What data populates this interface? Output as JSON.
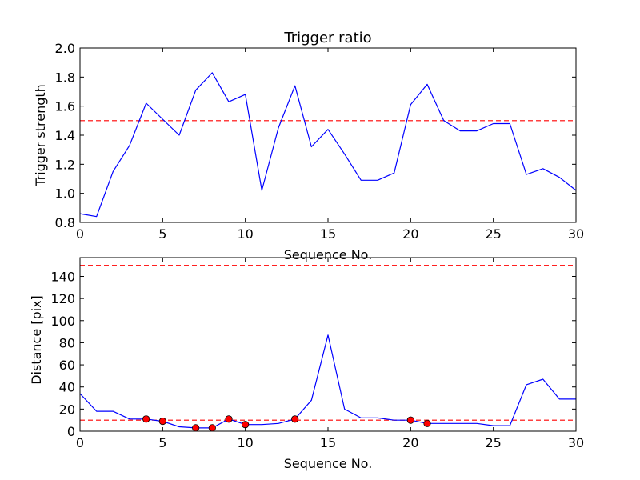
{
  "chart_data": [
    {
      "type": "line",
      "title": "Trigger ratio",
      "xlabel": "Sequence No.",
      "ylabel": "Trigger strength",
      "xlim": [
        0,
        30
      ],
      "ylim": [
        0.8,
        2.0
      ],
      "xticks": [
        0,
        5,
        10,
        15,
        20,
        25,
        30
      ],
      "yticks": [
        0.8,
        1.0,
        1.2,
        1.4,
        1.6,
        1.8,
        2.0
      ],
      "ytick_decimals": 1,
      "grid": false,
      "series": [
        {
          "color": "#0000ff",
          "x": [
            0,
            1,
            2,
            3,
            4,
            5,
            6,
            7,
            8,
            9,
            10,
            11,
            12,
            13,
            14,
            15,
            16,
            17,
            18,
            19,
            20,
            21,
            22,
            23,
            24,
            25,
            26,
            27,
            28,
            29,
            30
          ],
          "values": [
            0.86,
            0.84,
            1.15,
            1.33,
            1.62,
            1.51,
            1.4,
            1.71,
            1.83,
            1.63,
            1.68,
            1.02,
            1.45,
            1.74,
            1.32,
            1.44,
            1.27,
            1.09,
            1.09,
            1.14,
            1.61,
            1.75,
            1.5,
            1.43,
            1.43,
            1.48,
            1.48,
            1.13,
            1.17,
            1.11,
            1.02
          ]
        }
      ],
      "reference_lines": [
        {
          "y": 1.5,
          "color": "#ff0000",
          "style": "dashed"
        }
      ]
    },
    {
      "type": "line",
      "title": "",
      "xlabel": "Sequence No.",
      "ylabel": "Distance [pix]",
      "xlim": [
        0,
        30
      ],
      "ylim": [
        0,
        157
      ],
      "xticks": [
        0,
        5,
        10,
        15,
        20,
        25,
        30
      ],
      "yticks": [
        0,
        20,
        40,
        60,
        80,
        100,
        120,
        140
      ],
      "ytick_decimals": 0,
      "grid": false,
      "series": [
        {
          "color": "#0000ff",
          "x": [
            0,
            1,
            2,
            3,
            4,
            5,
            6,
            7,
            8,
            9,
            10,
            11,
            12,
            13,
            14,
            15,
            16,
            17,
            18,
            19,
            20,
            21,
            22,
            23,
            24,
            25,
            26,
            27,
            28,
            29,
            30
          ],
          "values": [
            34,
            18,
            18,
            11,
            11,
            9,
            4,
            3,
            3,
            11,
            6,
            6,
            7,
            11,
            28,
            87,
            20,
            12,
            12,
            10,
            10,
            7,
            7,
            7,
            7,
            5,
            5,
            42,
            47,
            29,
            29
          ]
        },
        {
          "color": "#ff0000",
          "marker": "circle",
          "x": [
            4,
            5,
            7,
            8,
            9,
            10,
            13,
            20,
            21
          ],
          "values": [
            11,
            9,
            3,
            3,
            11,
            6,
            11,
            10,
            7
          ]
        }
      ],
      "reference_lines": [
        {
          "y": 150,
          "color": "#ff0000",
          "style": "dashed"
        },
        {
          "y": 10,
          "color": "#ff0000",
          "style": "dashed"
        }
      ]
    }
  ]
}
